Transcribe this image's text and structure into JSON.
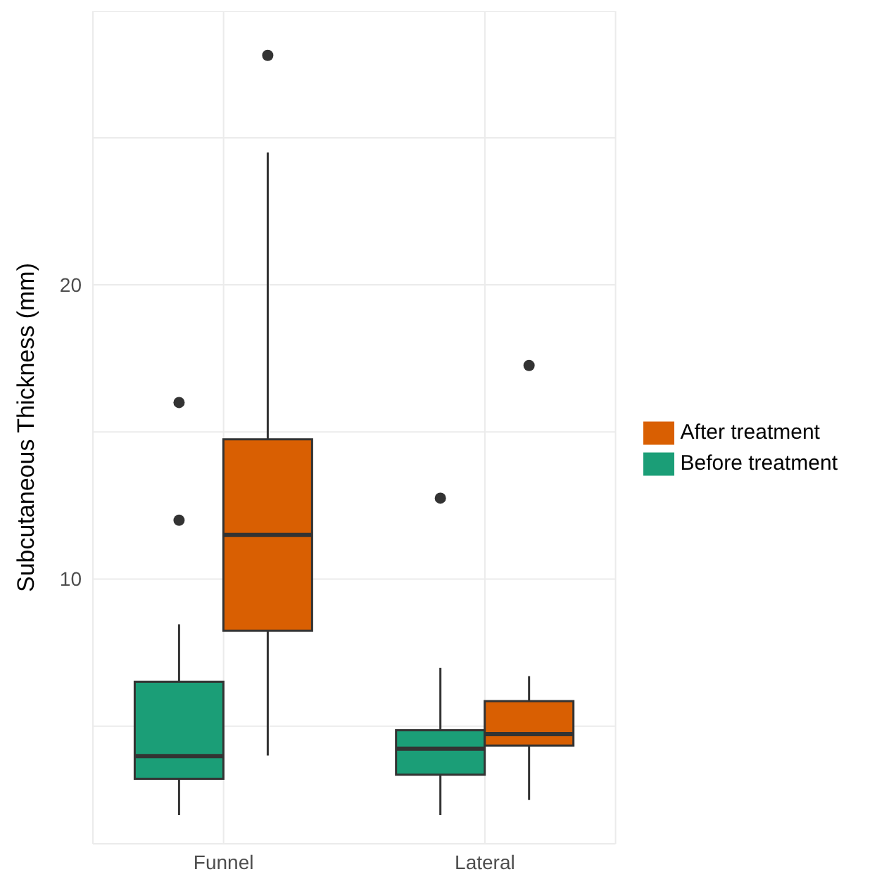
{
  "chart_data": {
    "type": "box",
    "ylabel": "Subcutaneous Thickness (mm)",
    "categories": [
      "Funnel",
      "Lateral"
    ],
    "series": [
      {
        "name": "Before treatment",
        "color": "#1b9e77",
        "boxes": [
          {
            "low": 1.98,
            "q1": 3.21,
            "median": 3.98,
            "q3": 6.51,
            "high": 8.46,
            "outliers": [
              12.0,
              16.0
            ]
          },
          {
            "low": 1.98,
            "q1": 3.35,
            "median": 4.23,
            "q3": 4.86,
            "high": 6.98,
            "outliers": [
              12.75
            ]
          }
        ]
      },
      {
        "name": "After treatment",
        "color": "#d95f02",
        "boxes": [
          {
            "low": 4.0,
            "q1": 8.24,
            "median": 11.5,
            "q3": 14.75,
            "high": 24.5,
            "outliers": [
              27.8
            ]
          },
          {
            "low": 2.49,
            "q1": 4.34,
            "median": 4.73,
            "q3": 5.85,
            "high": 6.7,
            "outliers": [
              17.26
            ]
          }
        ]
      }
    ],
    "ylim": [
      1.0,
      29.3
    ],
    "yticks": [
      {
        "value": 5,
        "label": null
      },
      10,
      {
        "value": 15,
        "label": null
      },
      20,
      {
        "value": 25,
        "label": null
      }
    ],
    "grid": true,
    "legend": "right"
  }
}
